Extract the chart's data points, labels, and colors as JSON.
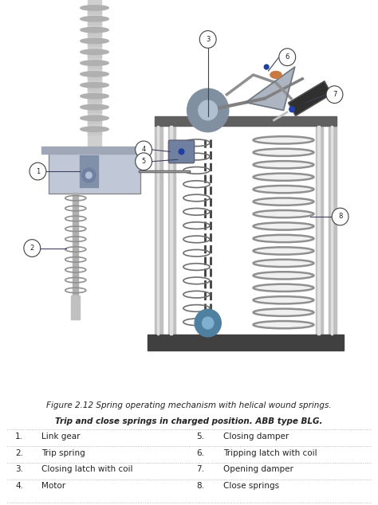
{
  "figure_caption_line1": "Figure 2.12 Spring operating mechanism with helical wound springs.",
  "figure_caption_line2": "Trip and close springs in charged position. ABB type BLG.",
  "legend_items_left": [
    {
      "num": "1.",
      "label": "Link gear"
    },
    {
      "num": "2.",
      "label": "Trip spring"
    },
    {
      "num": "3.",
      "label": "Closing latch with coil"
    },
    {
      "num": "4.",
      "label": "Motor"
    }
  ],
  "legend_items_right": [
    {
      "num": "5.",
      "label": "Closing damper"
    },
    {
      "num": "6.",
      "label": "Tripping latch with coil"
    },
    {
      "num": "7.",
      "label": "Opening damper"
    },
    {
      "num": "8.",
      "label": "Close springs"
    }
  ],
  "bg_color": "#ffffff",
  "caption_fontsize": 7.5,
  "legend_fontsize": 7.5,
  "table_text_color": "#222222",
  "separator_color": "#aaaaaa"
}
